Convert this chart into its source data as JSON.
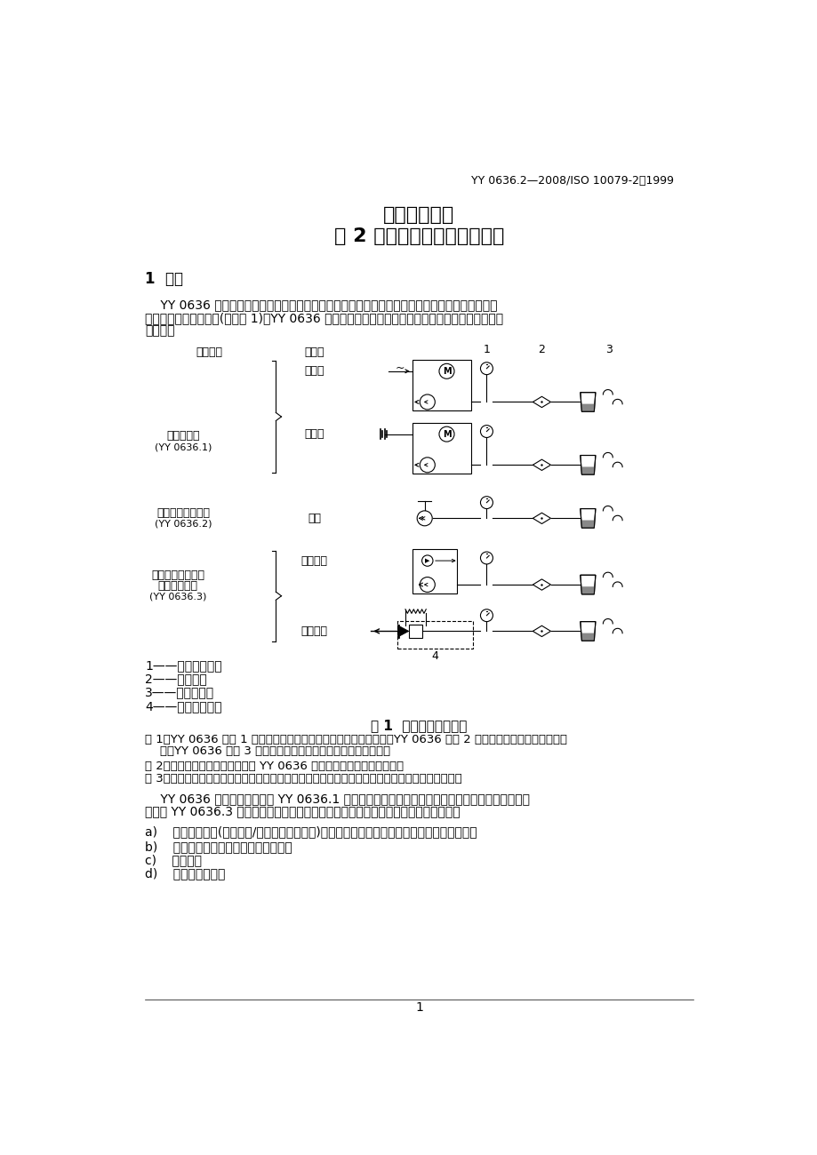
{
  "header_text": "YY 0636.2—2008/ISO 10079-2：1999",
  "title1": "医用吸引设备",
  "title2": "第 2 部分：人工驱动吸引设备",
  "section": "1  范围",
  "para1": "    YY 0636 的本部分规定了用于和部吸引的人工驱动吸引设备的安全和性能要求，包括脚踩、手动",
  "para1b": "或两者并用的吸引设备(参见图 1)。YY 0636 的本部分的范围包括可以与电气设备相组合的非电动吸",
  "para1c": "引设备。",
  "col1": "适用标准",
  "col2": "动力源",
  "label_wangdianyuan": "网电源",
  "label_xuchidian": "蓄电池",
  "label_renli": "人力",
  "label_yasuo": "压缩气源",
  "label_fuya": "负压管道",
  "label_diandong": "电动吸引器",
  "label_diandong2": "(YY 0636.1)",
  "label_rengong": "人工驱动吸引设备",
  "label_rengong2": "(YY 0636.2)",
  "label_fuyayuan": "负压源或压力源驱",
  "label_fuyayuan2": "动的吸引设备",
  "label_fuyayuan3": "(YY 0636.3)",
  "legend1": "1——负压指示器；",
  "legend2": "2——过滤器；",
  "legend3": "3——收集容器；",
  "legend4": "4——负压调节器。",
  "fig_caption": "图 1  吸引设备的示意图",
  "note1a": "注 1：YY 0636 的第 1 部分适用于网电源和蓄电池驱动的吸引设备，YY 0636 的第 2 部分适用于人工驱动吸引设备",
  "note1b": "    备，YY 0636 的第 3 部分适用于负压或压力源驱动的吸引设备。",
  "note2": "注 2：图上所示的各部件不一定是 YY 0636 的本部分所要求必须具备的。",
  "note3": "注 3：图上所示的吸引设备仅是一个实例，而实际的装置可能还包括其他图上未画出的设置和部件。",
  "scope_para2a": "    YY 0636 的本部分不适用于 YY 0636.1 中讨论的由网电源供电或电池驱动的电动吸引设备；也不",
  "scope_para2b": "适用于 YY 0636.3 中讨论的以负压或压力源作动力的吸引设备；也不适用于以下设备：",
  "item_a": "a)    中央动力系统(采用负压/压缩气体发生装置)，车辆和建筑物的管道系统，以及墙壁连接器；",
  "item_b": "b)    导液管，引流管，刷除器和吸引头；",
  "item_c": "c)    注射器；",
  "item_d": "d)    牙科吸引设备；",
  "page_num": "1",
  "bg_color": "#ffffff",
  "text_color": "#000000"
}
